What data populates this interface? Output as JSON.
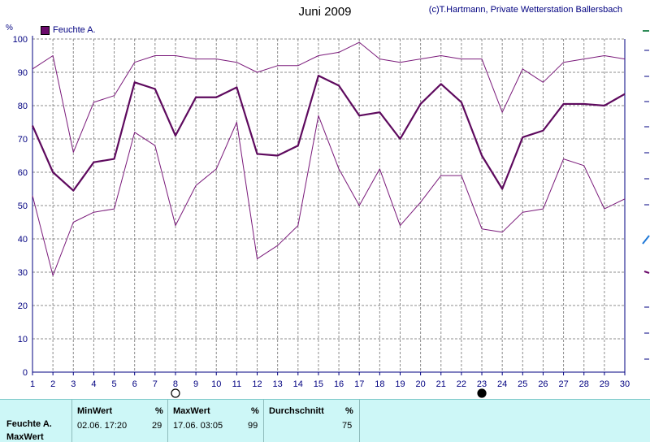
{
  "header": {
    "title": "Juni 2009",
    "copyright": "(c)T.Hartmann, Private Wetterstation Ballersbach",
    "unit": "%"
  },
  "chart_data": {
    "type": "line",
    "title": "Juni 2009",
    "ylabel": "%",
    "xlabel": "",
    "ylim": [
      0,
      100
    ],
    "y_ticks": [
      0,
      10,
      20,
      30,
      40,
      50,
      60,
      70,
      80,
      90,
      100
    ],
    "grid": true,
    "legend": "top-left",
    "legend_label": "Feuchte A.",
    "x": [
      1,
      2,
      3,
      4,
      5,
      6,
      7,
      8,
      9,
      10,
      11,
      12,
      13,
      14,
      15,
      16,
      17,
      18,
      19,
      20,
      21,
      22,
      23,
      24,
      25,
      26,
      27,
      28,
      29,
      30
    ],
    "series": [
      {
        "role": "max",
        "color": "#7a1a7a",
        "values": [
          91,
          95,
          66,
          81,
          83,
          93,
          95,
          95,
          94,
          94,
          93,
          90,
          92,
          92,
          95,
          96,
          99,
          94,
          93,
          94,
          95,
          94,
          94,
          78,
          91,
          87,
          93,
          94,
          95,
          94
        ]
      },
      {
        "role": "avg",
        "color": "#5e0a5e",
        "values": [
          74,
          60,
          54.5,
          63,
          64,
          87,
          85,
          71,
          82.5,
          82.5,
          85.5,
          65.5,
          65,
          68,
          89,
          86,
          77,
          78,
          70,
          80.5,
          86.5,
          81,
          65,
          55,
          70.5,
          72.5,
          80.5,
          80.5,
          80,
          83.5
        ]
      },
      {
        "role": "min",
        "color": "#7a1a7a",
        "values": [
          53,
          29,
          45,
          48,
          49,
          72,
          68,
          44,
          56,
          61,
          75,
          34,
          38,
          44,
          77,
          61,
          50,
          61,
          44,
          51,
          59,
          59,
          43,
          42,
          48,
          49,
          64,
          62,
          49,
          52
        ]
      }
    ],
    "moon_markers": [
      {
        "day": 8,
        "phase": "full"
      },
      {
        "day": 23,
        "phase": "new"
      }
    ]
  },
  "footer": {
    "row_label": "Feuchte A.",
    "row_label2": "MaxWert",
    "min_header": "MinWert",
    "min_unit": "%",
    "min_date": "02.06.  17:20",
    "min_value": "29",
    "max_header": "MaxWert",
    "max_unit": "%",
    "max_date": "17.06.  03:05",
    "max_value": "99",
    "avg_header": "Durchschnitt",
    "avg_unit": "%",
    "avg_value": "75"
  },
  "colors": {
    "axis_text": "#000080",
    "grid": "#999999",
    "series": "#6b0a6b",
    "footer_bg": "#cdf7f7"
  }
}
